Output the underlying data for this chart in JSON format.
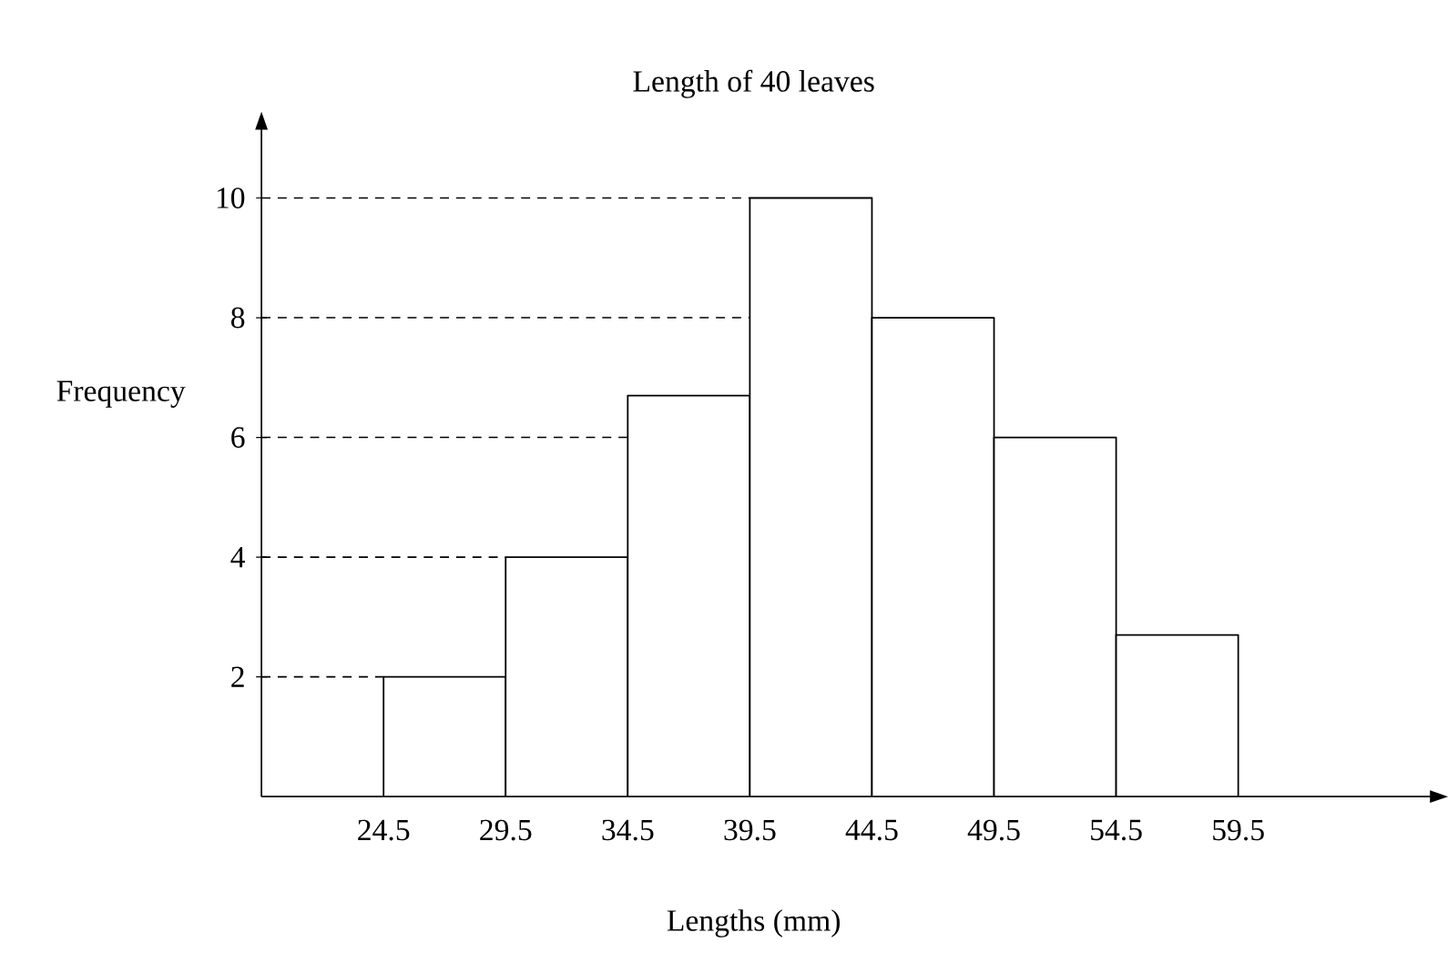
{
  "chart_data": {
    "type": "histogram",
    "title": "Length of 40 leaves",
    "xlabel": "Lengths (mm)",
    "ylabel": "Frequency",
    "bins": [
      24.5,
      29.5,
      34.5,
      39.5,
      44.5,
      49.5,
      54.5,
      59.5
    ],
    "values": [
      2,
      4,
      6.7,
      10,
      8,
      6,
      2.7
    ],
    "color": "#ffffff",
    "xlim": [
      19.5,
      67.5
    ],
    "ylim": [
      0,
      11.2
    ],
    "xticks": [
      24.5,
      29.5,
      34.5,
      39.5,
      44.5,
      49.5,
      54.5,
      59.5
    ],
    "yticks": [
      2,
      4,
      6,
      8,
      10
    ],
    "ref_lines": [
      {
        "axis": "y",
        "value": 2,
        "line_style": "dashed"
      },
      {
        "axis": "y",
        "value": 4,
        "line_style": "dashed"
      },
      {
        "axis": "y",
        "value": 6,
        "line_style": "dashed"
      },
      {
        "axis": "y",
        "value": 8,
        "line_style": "dashed"
      },
      {
        "axis": "y",
        "value": 10,
        "line_style": "dashed"
      }
    ],
    "grid": false
  }
}
